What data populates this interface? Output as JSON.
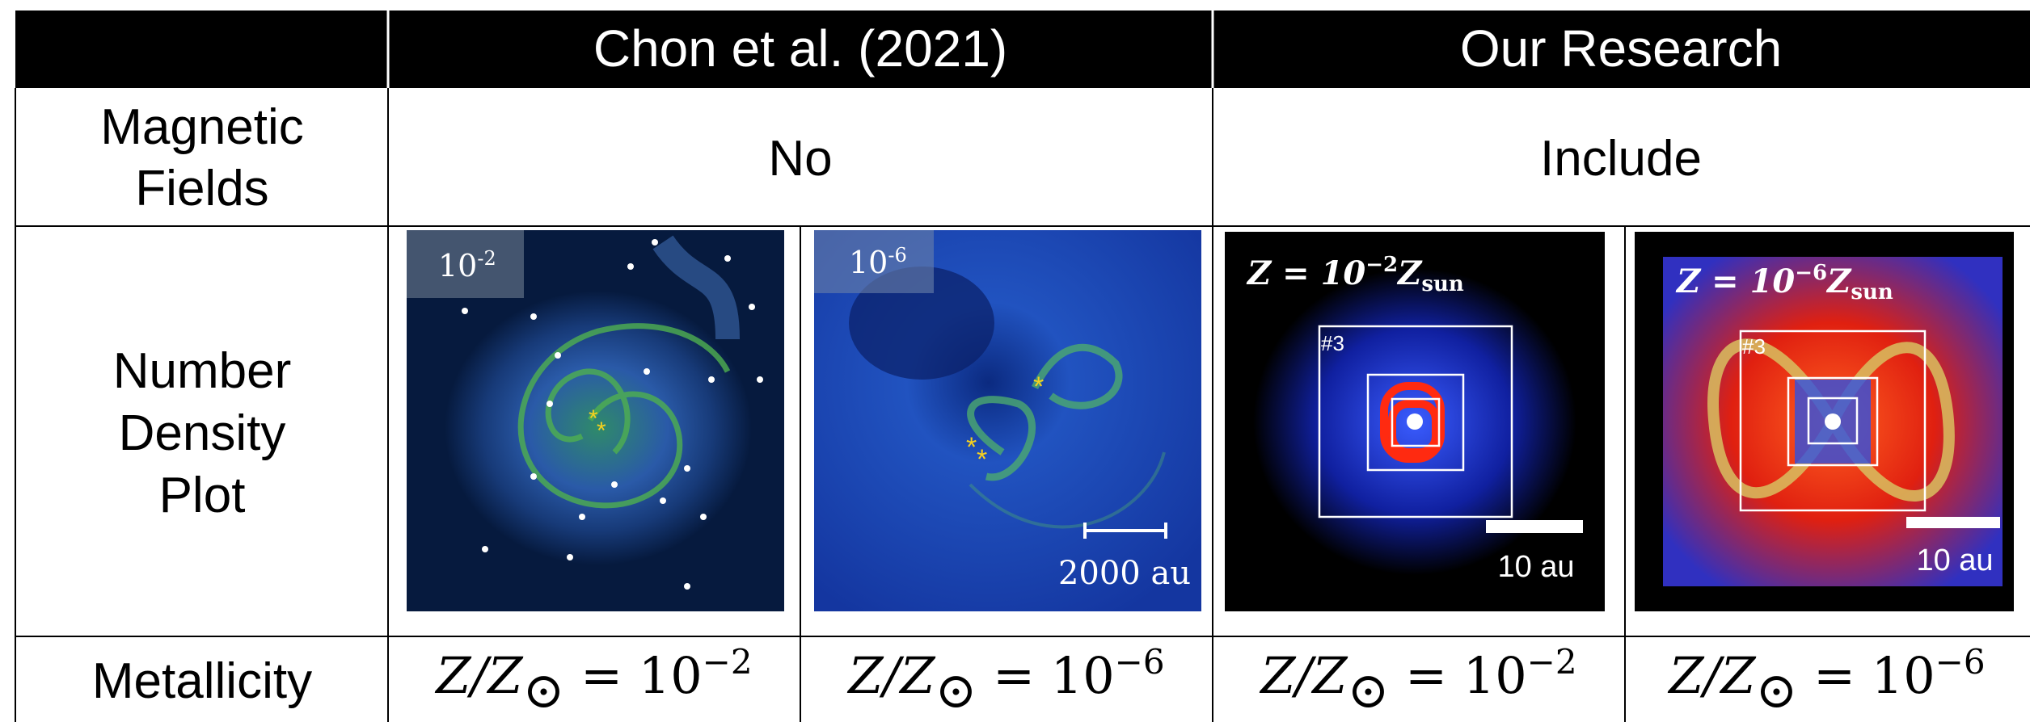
{
  "header": {
    "chon": "Chon et al. (2021)",
    "ours": "Our Research"
  },
  "rows": {
    "magnetic_fields": {
      "label": [
        "Magnetic",
        "Fields"
      ],
      "chon": "No",
      "ours": "Include"
    },
    "density_plot": {
      "label": [
        "Number",
        "Density",
        "Plot"
      ],
      "panels": [
        {
          "tag": "10",
          "tag_exp": "-2"
        },
        {
          "tag": "10",
          "tag_exp": "-6",
          "scale": "2000 au"
        },
        {
          "title": "Z = 10",
          "title_exp": "−2",
          "title_z": "Z",
          "title_sub": "sun",
          "box": "#3",
          "scale": "10 au"
        },
        {
          "title": "Z = 10",
          "title_exp": "−6",
          "title_z": "Z",
          "title_sub": "sun",
          "box": "#3",
          "scale": "10 au"
        }
      ]
    },
    "metallicity": {
      "label": "Metallicity",
      "values": [
        {
          "base": "Z/Z",
          "sub": "⊙",
          "rel": " = 10",
          "exp": "−2"
        },
        {
          "base": "Z/Z",
          "sub": "⊙",
          "rel": " = 10",
          "exp": "−6"
        },
        {
          "base": "Z/Z",
          "sub": "⊙",
          "rel": " = 10",
          "exp": "−2"
        },
        {
          "base": "Z/Z",
          "sub": "⊙",
          "rel": " = 10",
          "exp": "−6"
        }
      ]
    }
  }
}
